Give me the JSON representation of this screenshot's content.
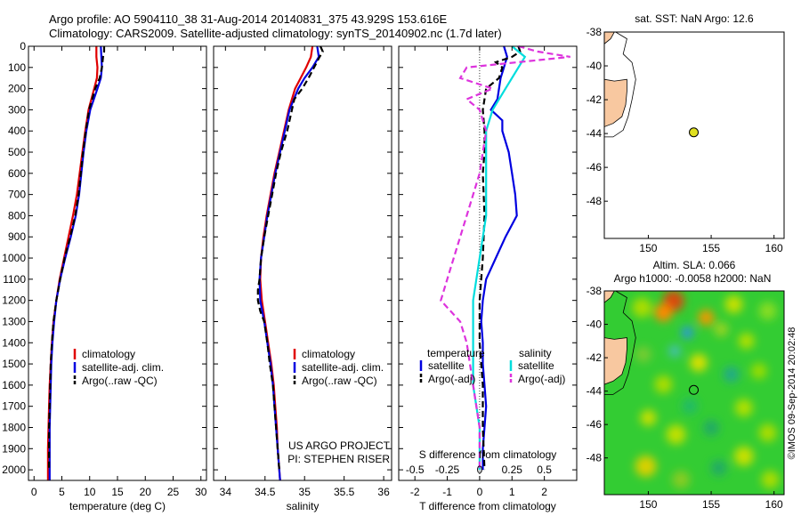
{
  "header": {
    "title_line1": "Argo profile: AO 5904110_38 31-Aug-2014 20140831_375 43.929S 153.616E",
    "title_line2": "Climatology: CARS2009. Satellite-adjusted climatology: synTS_20140902.nc (1.7d later)"
  },
  "colors": {
    "climatology": "#e00000",
    "satellite": "#0000e0",
    "argo": "#000000",
    "satellite_salinity": "#00dddd",
    "argo_salinity": "#dd33dd",
    "land": "#f8c8a0",
    "float_marker": "#e0e020"
  },
  "chart_data": [
    {
      "type": "line",
      "panel": "temperature",
      "xlabel": "temperature (deg C)",
      "ylabel": "",
      "xlim": [
        -1,
        31
      ],
      "ylim": [
        2050,
        0
      ],
      "xticks": [
        0,
        5,
        10,
        15,
        20,
        25,
        30
      ],
      "yticks": [
        0,
        100,
        200,
        300,
        400,
        500,
        600,
        700,
        800,
        900,
        1000,
        1100,
        1200,
        1300,
        1400,
        1500,
        1600,
        1700,
        1800,
        1900,
        2000
      ],
      "legend": [
        "climatology",
        "satellite-adj. clim.",
        "Argo(..raw -QC)"
      ],
      "legend_placement": "lower-left",
      "series": [
        {
          "name": "climatology",
          "style": "solid",
          "depth": [
            0,
            50,
            100,
            150,
            200,
            300,
            400,
            500,
            600,
            700,
            800,
            900,
            1000,
            1100,
            1200,
            1300,
            1400,
            1500,
            1600,
            1700,
            1800,
            1900,
            2000,
            2050
          ],
          "values": [
            11.2,
            11.2,
            11.4,
            11.3,
            10.8,
            9.8,
            9.2,
            8.7,
            8.2,
            7.7,
            7.0,
            6.2,
            5.4,
            4.6,
            4.0,
            3.5,
            3.2,
            3.0,
            2.8,
            2.7,
            2.6,
            2.5,
            2.5,
            2.5
          ]
        },
        {
          "name": "satellite-adj. clim.",
          "style": "solid",
          "depth": [
            0,
            50,
            100,
            150,
            200,
            300,
            400,
            500,
            600,
            700,
            800,
            900,
            1000,
            1100,
            1200,
            1300,
            1400,
            1500,
            1600,
            1700,
            1800,
            1900,
            2000,
            2050
          ],
          "values": [
            12.0,
            12.1,
            12.2,
            12.0,
            11.4,
            10.1,
            9.4,
            8.9,
            8.5,
            8.1,
            7.5,
            6.6,
            5.6,
            4.7,
            4.0,
            3.6,
            3.3,
            3.1,
            3.0,
            2.9,
            2.8,
            2.8,
            2.8,
            2.8
          ]
        },
        {
          "name": "Argo(..raw -QC)",
          "style": "dashed",
          "depth": [
            0,
            25,
            50,
            100,
            150,
            200,
            300,
            400,
            500,
            600,
            700,
            800,
            900,
            1000,
            1100,
            1200,
            1300,
            1400,
            1500,
            1600,
            1700,
            1800,
            1900,
            2000
          ],
          "values": [
            12.6,
            12.6,
            12.4,
            12.2,
            11.8,
            11.0,
            9.9,
            9.3,
            8.8,
            8.4,
            8.0,
            7.4,
            6.5,
            5.5,
            4.7,
            4.0,
            3.5,
            3.2,
            3.0,
            2.9,
            2.8,
            2.7,
            2.7,
            2.7
          ]
        }
      ]
    },
    {
      "type": "line",
      "panel": "salinity",
      "xlabel": "salinity",
      "ylabel": "",
      "xlim": [
        33.85,
        36.1
      ],
      "ylim": [
        2050,
        0
      ],
      "xticks": [
        34,
        34.5,
        35,
        35.5,
        36
      ],
      "legend": [
        "climatology",
        "satellite-adj. clim.",
        "Argo(..raw -QC)"
      ],
      "legend_placement": "lower-right",
      "annotation": [
        "US ARGO PROJECT",
        "PI: STEPHEN RISER"
      ],
      "series": [
        {
          "name": "climatology",
          "style": "solid",
          "depth": [
            0,
            50,
            100,
            150,
            200,
            300,
            400,
            500,
            600,
            700,
            800,
            900,
            1000,
            1100,
            1200,
            1300,
            1400,
            1500,
            1600,
            1700,
            1800,
            1900,
            2000,
            2050
          ],
          "values": [
            35.1,
            35.08,
            35.02,
            34.95,
            34.88,
            34.8,
            34.74,
            34.68,
            34.62,
            34.57,
            34.52,
            34.48,
            34.45,
            34.44,
            34.46,
            34.5,
            34.54,
            34.58,
            34.61,
            34.63,
            34.65,
            34.66,
            34.68,
            34.69
          ]
        },
        {
          "name": "satellite-adj. clim.",
          "style": "solid",
          "depth": [
            0,
            50,
            100,
            150,
            200,
            300,
            400,
            500,
            600,
            700,
            800,
            900,
            1000,
            1100,
            1200,
            1300,
            1400,
            1500,
            1600,
            1700,
            1800,
            1900,
            2000,
            2050
          ],
          "values": [
            35.16,
            35.18,
            35.1,
            35.0,
            34.92,
            34.81,
            34.75,
            34.69,
            34.63,
            34.58,
            34.53,
            34.49,
            34.45,
            34.43,
            34.44,
            34.49,
            34.53,
            34.57,
            34.6,
            34.62,
            34.64,
            34.66,
            34.68,
            34.69
          ]
        },
        {
          "name": "Argo(..raw -QC)",
          "style": "dashed",
          "depth": [
            0,
            25,
            50,
            100,
            150,
            200,
            250,
            300,
            400,
            500,
            600,
            700,
            800,
            900,
            1000,
            1100,
            1150,
            1200,
            1250,
            1300,
            1400,
            1500,
            1600,
            1700,
            1800,
            1900,
            2000
          ],
          "values": [
            35.2,
            35.23,
            35.19,
            35.12,
            35.05,
            34.97,
            34.87,
            34.84,
            34.78,
            34.7,
            34.64,
            34.59,
            34.54,
            34.49,
            34.45,
            34.43,
            34.41,
            34.41,
            34.44,
            34.49,
            34.53,
            34.56,
            34.6,
            34.62,
            34.64,
            34.66,
            34.68
          ]
        }
      ]
    },
    {
      "type": "line",
      "panel": "difference",
      "xlabel": "T difference from climatology",
      "xlabel_top": "S difference from climatology",
      "xlim": [
        -2.5,
        3
      ],
      "ylim": [
        2050,
        0
      ],
      "xticks": [
        -2,
        -1,
        0,
        1,
        2
      ],
      "xticklabels_top": [
        "-0.5",
        "-0.25",
        "0",
        "0.25",
        "0.5"
      ],
      "xticks_top_positions": [
        -2,
        -1,
        0,
        1,
        2
      ],
      "legend_title_left": "temperature",
      "legend_title_right": "salinity",
      "legend": [
        "satellite",
        "Argo(-adj)",
        "satellite",
        "Argo(-adj)"
      ],
      "legend_placement": "lower-center",
      "series": [
        {
          "name": "satellite",
          "quantity": "temperature",
          "style": "solid",
          "depth": [
            0,
            50,
            100,
            150,
            200,
            250,
            300,
            350,
            400,
            500,
            600,
            700,
            800,
            900,
            1000,
            1100,
            1200,
            1300,
            1400,
            1500,
            1600,
            1700,
            1800,
            1900,
            2000
          ],
          "values": [
            0.75,
            0.85,
            0.75,
            0.65,
            0.6,
            0.55,
            0.35,
            0.7,
            0.7,
            0.9,
            1.0,
            1.1,
            1.15,
            0.8,
            0.5,
            0.2,
            0.1,
            0.05,
            0.1,
            0.1,
            0.15,
            0.2,
            0.15,
            0.1,
            0.1
          ]
        },
        {
          "name": "Argo(-adj)",
          "quantity": "temperature",
          "style": "dashed",
          "depth": [
            0,
            25,
            50,
            75,
            100,
            150,
            200,
            250,
            300,
            400,
            500,
            600,
            800,
            1000,
            1200,
            1400,
            1600,
            1800,
            2000
          ],
          "values": [
            1.2,
            1.25,
            1.0,
            0.5,
            0.7,
            0.6,
            0.2,
            0.15,
            0.1,
            0.15,
            0.15,
            0.1,
            0.15,
            0.1,
            0.0,
            0.0,
            0.1,
            0.1,
            0.15
          ]
        },
        {
          "name": "satellite",
          "quantity": "salinity",
          "style": "solid",
          "depth": [
            0,
            50,
            100,
            200,
            300,
            400,
            600,
            800,
            1000,
            1200,
            1400,
            1600,
            1800,
            2000
          ],
          "values": [
            0.25,
            0.35,
            0.3,
            0.2,
            0.1,
            0.05,
            0.05,
            0.05,
            0.0,
            -0.05,
            -0.05,
            -0.05,
            0.0,
            0.0
          ]
        },
        {
          "name": "Argo(-adj)",
          "quantity": "salinity",
          "style": "dashed",
          "depth": [
            0,
            25,
            50,
            100,
            150,
            200,
            250,
            300,
            400,
            600,
            800,
            1000,
            1100,
            1200,
            1300,
            1400,
            1600,
            1800,
            2000
          ],
          "values": [
            0.3,
            0.45,
            0.7,
            -0.1,
            -0.15,
            0.1,
            -0.1,
            0.0,
            0.05,
            0.0,
            -0.1,
            -0.2,
            -0.25,
            -0.3,
            -0.15,
            -0.1,
            -0.05,
            0.0,
            0.0
          ]
        }
      ]
    },
    {
      "type": "scatter",
      "panel": "sst_map",
      "title": "sat. SST: NaN Argo: 12.6",
      "xlim": [
        146.5,
        160.8
      ],
      "ylim": [
        -50.2,
        -38
      ],
      "xticks": [
        150,
        155,
        160
      ],
      "yticks": [
        -38,
        -40,
        -42,
        -44,
        -46,
        -48
      ],
      "points": [
        {
          "lon": 153.616,
          "lat": -43.929
        }
      ]
    },
    {
      "type": "heatmap",
      "panel": "sla_map",
      "title_line1": "Altim. SLA: 0.066",
      "title_line2": "Argo h1000: -0.0058 h2000: NaN",
      "side_label": "©IMOS 09-Sep-2014 20:02:48",
      "xlim": [
        146.5,
        160.8
      ],
      "ylim": [
        -50.2,
        -38
      ],
      "xticks": [
        150,
        155,
        160
      ],
      "yticks": [
        -38,
        -40,
        -42,
        -44,
        -46,
        -48
      ],
      "points": [
        {
          "lon": 153.616,
          "lat": -43.929
        }
      ]
    }
  ]
}
